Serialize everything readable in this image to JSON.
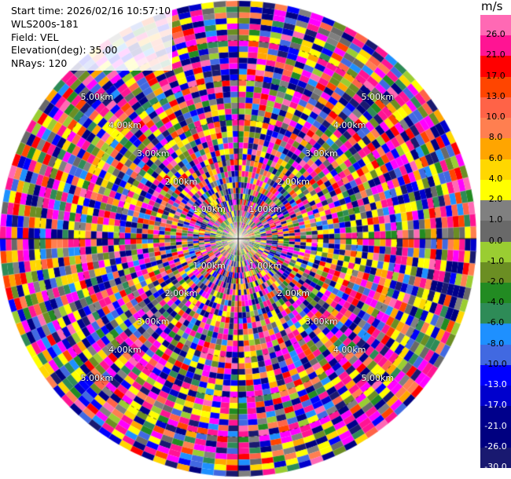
{
  "header": {
    "start_time": "Start time: 2026/02/16 10:57:10",
    "instrument": "WLS200s-181",
    "field": "Field: VEL",
    "elevation": "Elevation(deg): 35.00",
    "nrays": "NRays: 120"
  },
  "chart_data": {
    "type": "heatmap",
    "projection": "polar PPI scan",
    "field": "VEL",
    "units": "m/s",
    "elevation_deg": 35.0,
    "n_rays": 120,
    "range_max_km": 6.0,
    "range_ring_labels": [
      "1.00km",
      "2.00km",
      "3.00km",
      "4.00km",
      "5.00km"
    ],
    "crosshair_axes": true,
    "colorbar": {
      "title": "m/s",
      "position": "right",
      "tick_labels": [
        "26.0",
        "21.0",
        "17.0",
        "13.0",
        "10.0",
        "8.0",
        "6.0",
        "4.0",
        "2.0",
        "1.0",
        "0.0",
        "-1.0",
        "-2.0",
        "-4.0",
        "-6.0",
        "-8.0",
        "-10.0",
        "-13.0",
        "-17.0",
        "-21.0",
        "-26.0",
        "-30.0"
      ],
      "levels": [
        -30,
        -26,
        -21,
        -17,
        -13,
        -10,
        -8,
        -6,
        -4,
        -2,
        -1,
        0,
        1,
        2,
        4,
        6,
        8,
        10,
        13,
        17,
        21,
        26,
        30
      ],
      "colors": [
        "#191970",
        "#000080",
        "#00008b",
        "#0000cd",
        "#0000ff",
        "#4169e1",
        "#1e90ff",
        "#2e8b57",
        "#228b22",
        "#6b8e23",
        "#9acd32",
        "#696969",
        "#808080",
        "#ffff00",
        "#ffd700",
        "#ffa500",
        "#ff7f50",
        "#ff6347",
        "#ff4500",
        "#ff0000",
        "#ff1493",
        "#ff69b4"
      ]
    }
  }
}
